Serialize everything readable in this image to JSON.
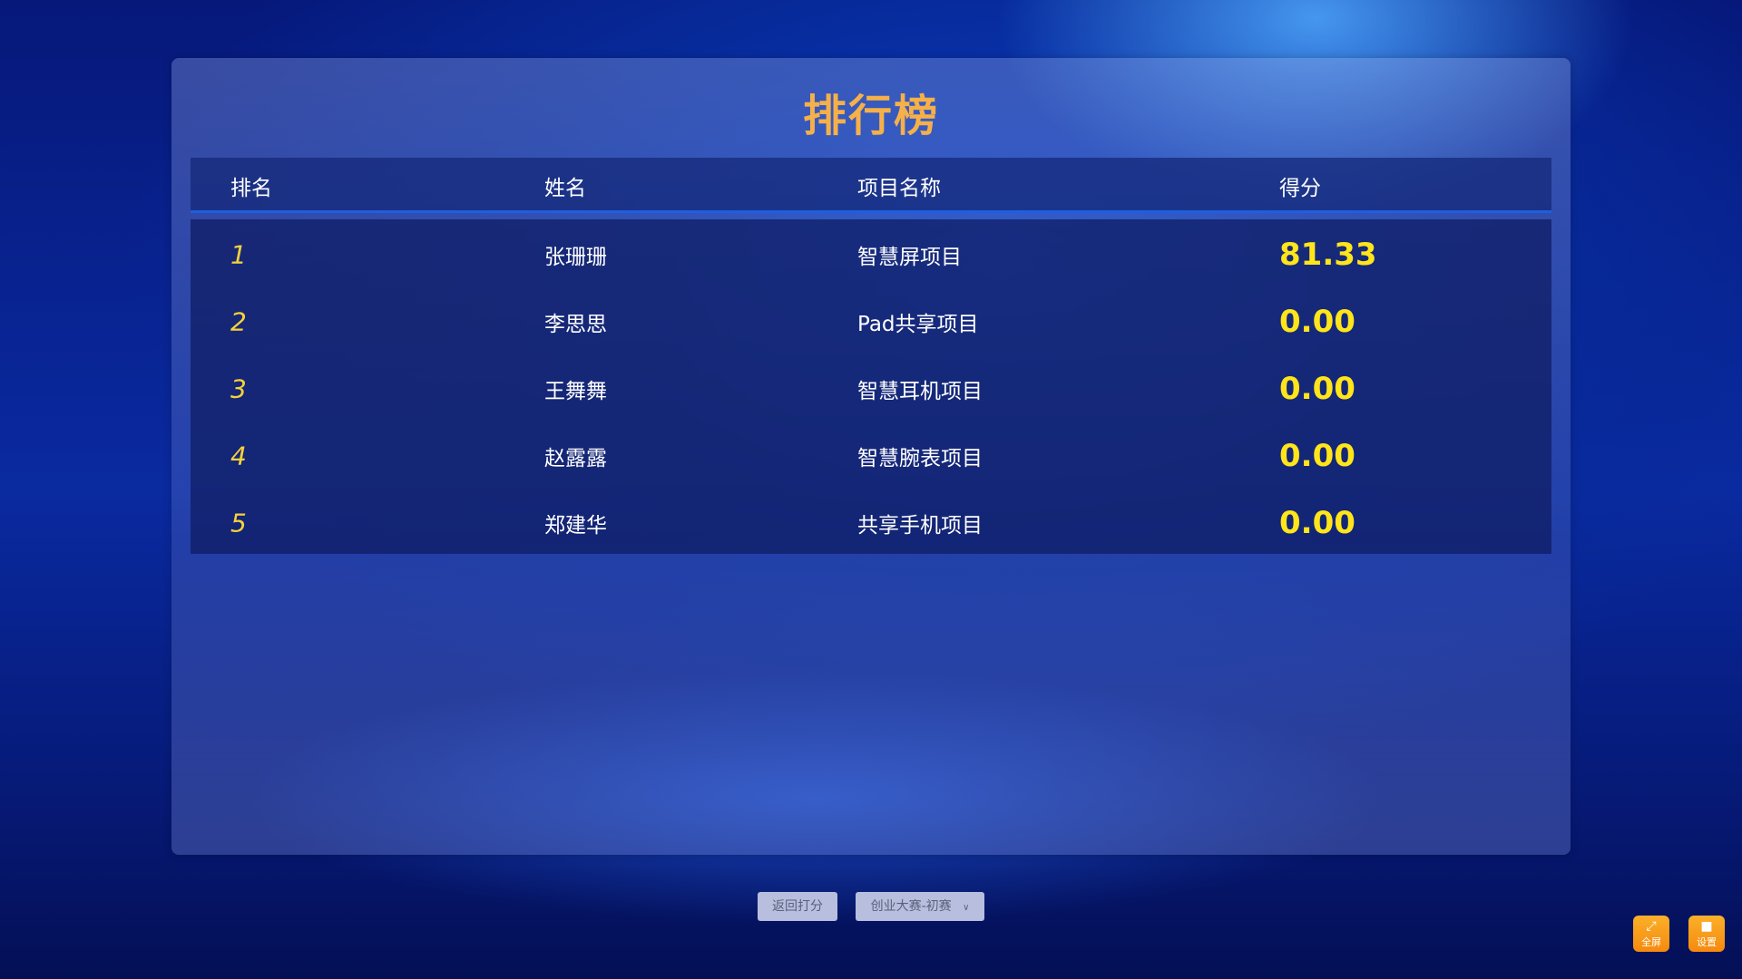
{
  "title": "排行榜",
  "columns": [
    "排名",
    "姓名",
    "项目名称",
    "得分"
  ],
  "rows": [
    {
      "rank": "1",
      "name": "张珊珊",
      "project": "智慧屏项目",
      "score": "81.33"
    },
    {
      "rank": "2",
      "name": "李思思",
      "project": "Pad共享项目",
      "score": "0.00"
    },
    {
      "rank": "3",
      "name": "王舞舞",
      "project": "智慧耳机项目",
      "score": "0.00"
    },
    {
      "rank": "4",
      "name": "赵露露",
      "project": "智慧腕表项目",
      "score": "0.00"
    },
    {
      "rank": "5",
      "name": "郑建华",
      "project": "共享手机项目",
      "score": "0.00"
    }
  ],
  "footer": {
    "back_label": "返回打分",
    "round_select": "创业大赛-初赛"
  },
  "tools": {
    "fullscreen_label": "全屏",
    "settings_label": "设置"
  }
}
